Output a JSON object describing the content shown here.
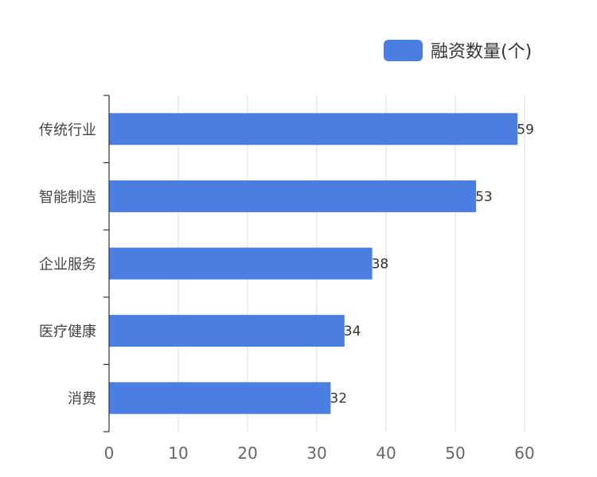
{
  "chart_data": {
    "type": "bar",
    "orientation": "horizontal",
    "categories": [
      "传统行业",
      "智能制造",
      "企业服务",
      "医疗健康",
      "消费"
    ],
    "series": [
      {
        "name": "融资数量(个)",
        "values": [
          59,
          53,
          38,
          34,
          32
        ],
        "color": "#4a7ee0"
      }
    ],
    "xlim": [
      0,
      60
    ],
    "x_ticks": [
      0,
      10,
      20,
      30,
      40,
      50,
      60
    ],
    "grid": true,
    "legend_position": "top-right",
    "data_labels": true
  }
}
